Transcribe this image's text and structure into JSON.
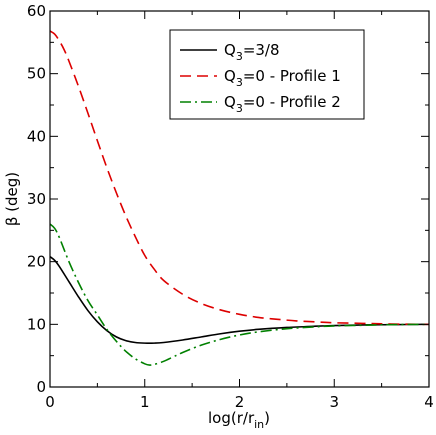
{
  "chart_data": {
    "type": "line",
    "title": "",
    "xlabel": {
      "base": "log(r/r",
      "sub": "in",
      "tail": ")"
    },
    "ylabel": "β (deg)",
    "xlim": [
      0,
      4
    ],
    "ylim": [
      0,
      60
    ],
    "xticks": [
      "0",
      "1",
      "2",
      "3",
      "4"
    ],
    "yticks": [
      "0",
      "10",
      "20",
      "30",
      "40",
      "50",
      "60"
    ],
    "grid": false,
    "legend_position": "top-right",
    "series": [
      {
        "name": "Q3=3/8",
        "legend": {
          "base": "Q",
          "sub": "3",
          "tail": "=3/8"
        },
        "color": "#000000",
        "style": "solid",
        "x": [
          0,
          0.05,
          0.1,
          0.2,
          0.3,
          0.4,
          0.5,
          0.6,
          0.7,
          0.8,
          0.9,
          1.0,
          1.1,
          1.2,
          1.4,
          1.6,
          1.8,
          2.0,
          2.2,
          2.5,
          2.8,
          3.0,
          3.3,
          3.6,
          4.0
        ],
        "y": [
          20.8,
          20.2,
          19.2,
          16.8,
          14.4,
          12.2,
          10.4,
          9.0,
          8.0,
          7.4,
          7.1,
          7.0,
          7.0,
          7.1,
          7.5,
          8.0,
          8.5,
          8.9,
          9.2,
          9.5,
          9.7,
          9.8,
          9.9,
          9.95,
          10.0
        ]
      },
      {
        "name": "Q3=0 - Profile 1",
        "legend": {
          "base": "Q",
          "sub": "3",
          "tail": "=0 - Profile 1"
        },
        "color": "#dd0000",
        "style": "dashed",
        "x": [
          0,
          0.05,
          0.1,
          0.15,
          0.2,
          0.3,
          0.4,
          0.5,
          0.6,
          0.7,
          0.8,
          0.9,
          1.0,
          1.1,
          1.2,
          1.4,
          1.6,
          1.8,
          2.0,
          2.2,
          2.4,
          2.6,
          2.8,
          3.0,
          3.3,
          3.6,
          4.0
        ],
        "y": [
          56.8,
          56.3,
          55.2,
          53.8,
          52.0,
          48.0,
          43.7,
          39.3,
          35.0,
          31.0,
          27.3,
          24.0,
          21.0,
          18.8,
          17.0,
          14.8,
          13.3,
          12.3,
          11.6,
          11.1,
          10.8,
          10.55,
          10.4,
          10.25,
          10.15,
          10.05,
          10.0
        ]
      },
      {
        "name": "Q3=0 - Profile 2",
        "legend": {
          "base": "Q",
          "sub": "3",
          "tail": "=0 - Profile 2"
        },
        "color": "#008000",
        "style": "dashdot",
        "x": [
          0,
          0.05,
          0.1,
          0.2,
          0.3,
          0.4,
          0.5,
          0.6,
          0.7,
          0.8,
          0.9,
          1.0,
          1.05,
          1.1,
          1.2,
          1.3,
          1.4,
          1.6,
          1.8,
          2.0,
          2.2,
          2.5,
          2.8,
          3.0,
          3.3,
          3.6,
          4.0
        ],
        "y": [
          26.0,
          25.3,
          23.8,
          20.0,
          16.7,
          13.8,
          11.5,
          9.2,
          7.3,
          5.7,
          4.5,
          3.7,
          3.5,
          3.6,
          4.1,
          4.8,
          5.5,
          6.7,
          7.6,
          8.3,
          8.8,
          9.3,
          9.6,
          9.75,
          9.85,
          9.95,
          10.0
        ]
      }
    ]
  }
}
